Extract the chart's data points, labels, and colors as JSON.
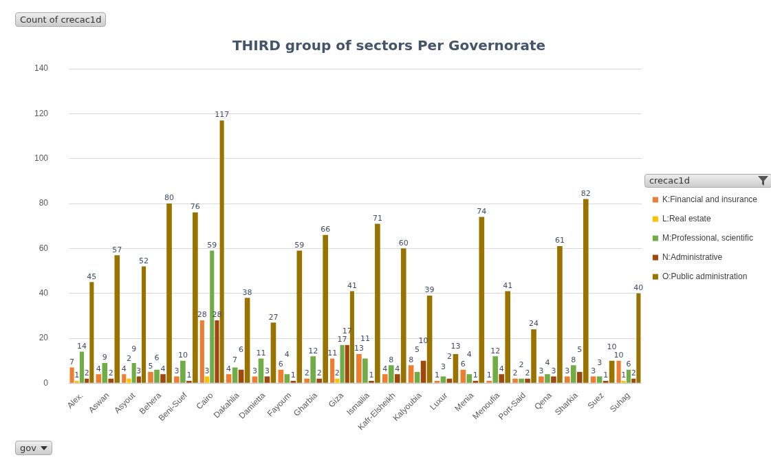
{
  "chart_data": {
    "type": "bar",
    "title": "THIRD group of sectors Per Governorate",
    "categories": [
      "Alex.",
      "Aswan",
      "Asyout",
      "Behera",
      "Beni-Suef",
      "Cairo",
      "Dakahlia",
      "Damietta",
      "Fayoum",
      "Gharbia",
      "Giza",
      "Ismailia",
      "Kafr-Elsheikh",
      "Kalyoubia",
      "Luxur",
      "Menia",
      "Menoufia",
      "Port-Said",
      "Qena",
      "Sharkia",
      "Suez",
      "Suhag"
    ],
    "series": [
      {
        "name": "K:Financial and insurance",
        "color": "#ed7d31",
        "values": [
          7,
          4,
          4,
          5,
          3,
          28,
          4,
          3,
          6,
          2,
          11,
          13,
          4,
          8,
          1,
          6,
          1,
          2,
          3,
          3,
          3,
          10
        ]
      },
      {
        "name": "L:Real estate",
        "color": "#ffc000",
        "values": [
          1,
          null,
          2,
          null,
          null,
          3,
          null,
          null,
          null,
          null,
          2,
          null,
          null,
          null,
          null,
          null,
          null,
          null,
          null,
          null,
          null,
          1
        ]
      },
      {
        "name": "M:Professional, scientific",
        "color": "#70ad47",
        "values": [
          14,
          9,
          9,
          6,
          10,
          59,
          7,
          11,
          4,
          12,
          17,
          11,
          8,
          5,
          3,
          4,
          12,
          2,
          4,
          8,
          3,
          6
        ]
      },
      {
        "name": "N:Administrative",
        "color": "#9e480e",
        "values": [
          2,
          2,
          3,
          4,
          1,
          28,
          6,
          3,
          1,
          2,
          17,
          1,
          4,
          10,
          2,
          1,
          4,
          2,
          3,
          5,
          1,
          2
        ]
      },
      {
        "name": "O:Public administration",
        "color": "#997300",
        "values": [
          45,
          57,
          52,
          80,
          76,
          117,
          38,
          27,
          59,
          66,
          41,
          71,
          60,
          39,
          13,
          74,
          41,
          24,
          61,
          82,
          10,
          40
        ]
      }
    ],
    "ylim": [
      0,
      140
    ],
    "yticks": [
      0,
      20,
      40,
      60,
      80,
      100,
      120,
      140
    ],
    "grid": "y",
    "legend": "right",
    "legend_title": "crecac1d",
    "data_labels": true,
    "annotations": [
      "Count of crecac1d",
      "gov"
    ]
  }
}
